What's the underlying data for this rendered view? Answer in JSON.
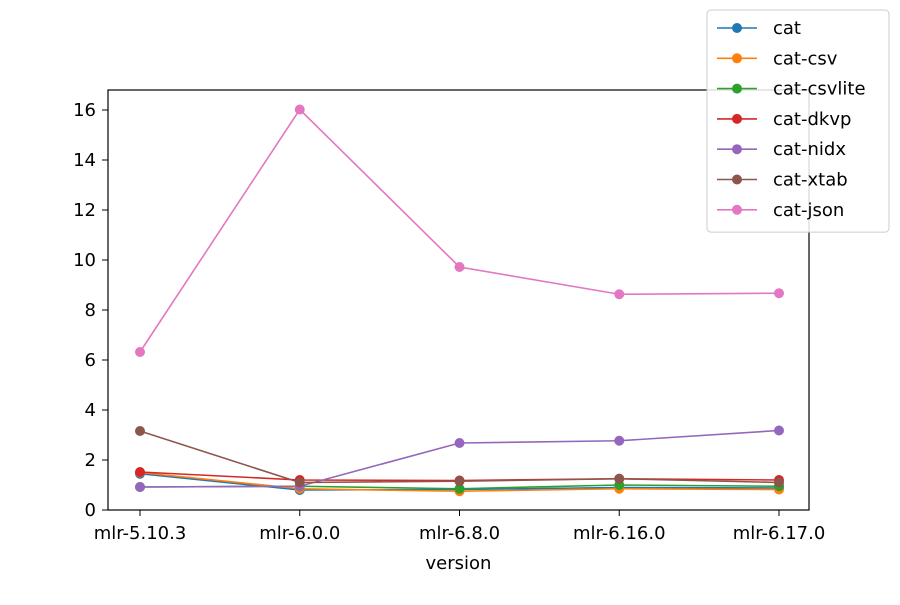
{
  "chart_data": {
    "type": "line",
    "title": "",
    "xlabel": "version",
    "ylabel": "",
    "categories": [
      "mlr-5.10.3",
      "mlr-6.0.0",
      "mlr-6.8.0",
      "mlr-6.16.0",
      "mlr-6.17.0"
    ],
    "ylim": [
      0,
      16.8
    ],
    "yticks": [
      0,
      2,
      4,
      6,
      8,
      10,
      12,
      14,
      16
    ],
    "ytick_labels": [
      "0",
      "2",
      "4",
      "6",
      "8",
      "10",
      "12",
      "14",
      "16"
    ],
    "grid": false,
    "legend_position": "top-right",
    "series": [
      {
        "name": "cat",
        "color": "#1f77b4",
        "values": [
          1.45,
          0.8,
          0.82,
          0.9,
          0.88
        ]
      },
      {
        "name": "cat-csv",
        "color": "#ff7f0e",
        "values": [
          1.5,
          0.85,
          0.75,
          0.85,
          0.82
        ]
      },
      {
        "name": "cat-csvlite",
        "color": "#2ca02c",
        "values": [
          0.92,
          0.95,
          0.85,
          1.0,
          0.95
        ]
      },
      {
        "name": "cat-dkvp",
        "color": "#d62728",
        "values": [
          1.52,
          1.2,
          1.18,
          1.25,
          1.2
        ]
      },
      {
        "name": "cat-nidx",
        "color": "#9467bd",
        "values": [
          0.92,
          0.95,
          2.68,
          2.77,
          3.18
        ]
      },
      {
        "name": "cat-xtab",
        "color": "#8c564b",
        "values": [
          3.16,
          1.1,
          1.15,
          1.25,
          1.1
        ]
      },
      {
        "name": "cat-json",
        "color": "#e377c2",
        "values": [
          6.32,
          16.02,
          9.72,
          8.63,
          8.67
        ]
      }
    ]
  }
}
